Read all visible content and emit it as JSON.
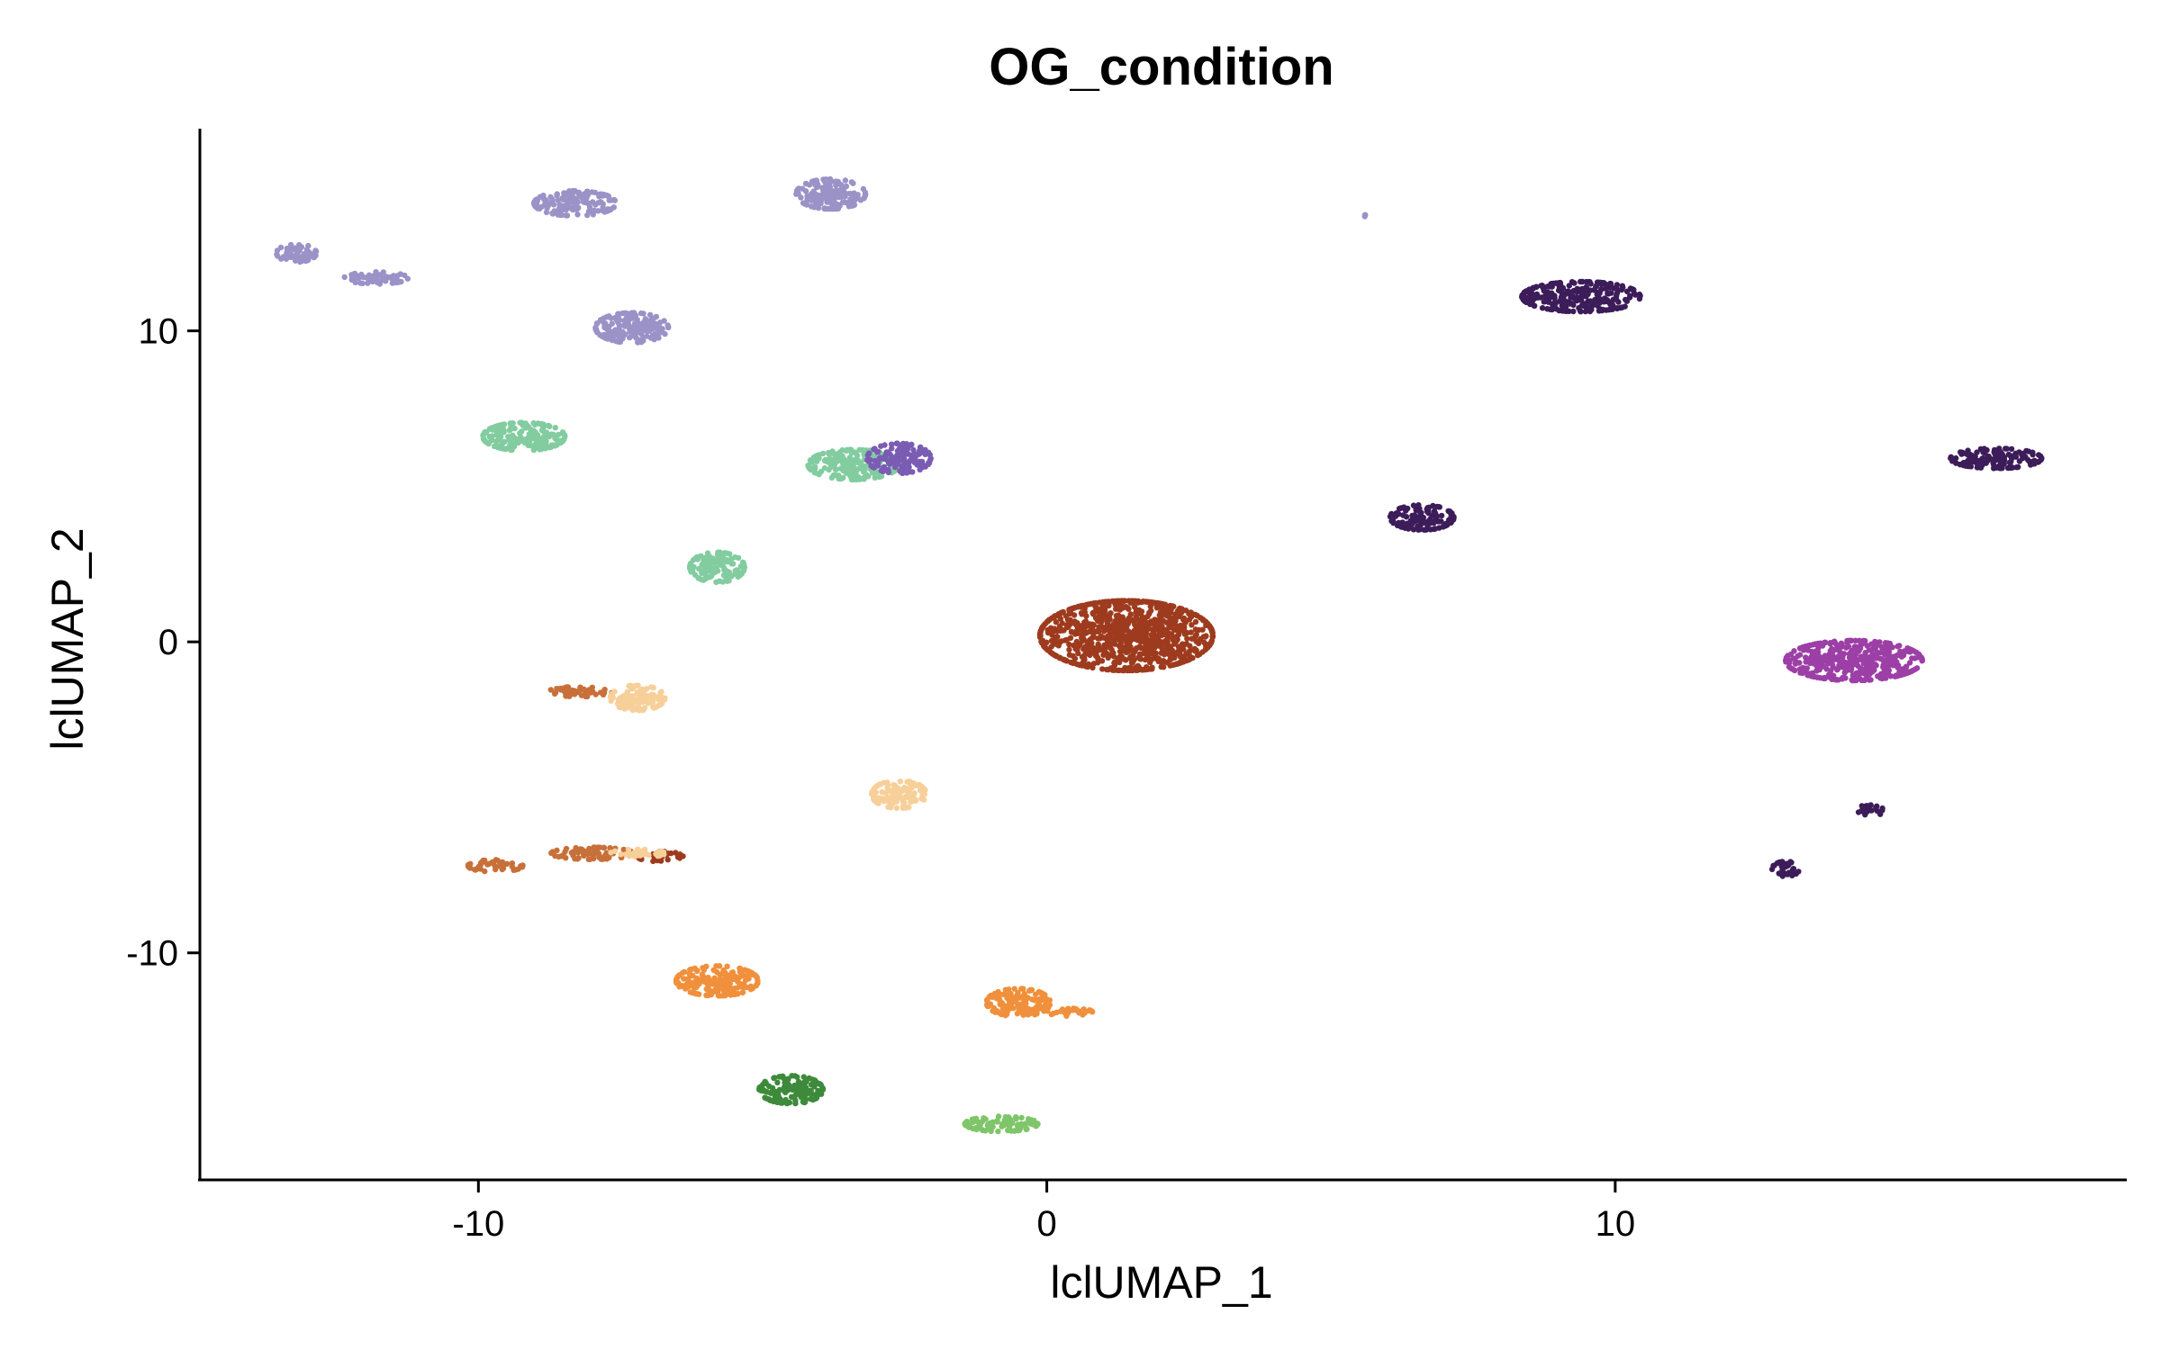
{
  "chart_data": {
    "type": "scatter",
    "title": "OG_condition",
    "xlabel": "lclUMAP_1",
    "ylabel": "lclUMAP_2",
    "xlim": [
      -14.9,
      19
    ],
    "ylim": [
      -17.3,
      16.5
    ],
    "x_ticks": [
      -10,
      0,
      10
    ],
    "y_ticks": [
      10,
      0,
      -10
    ],
    "x_tick_labels": [
      "-10",
      "0",
      "10"
    ],
    "y_tick_labels": [
      "10",
      "0",
      "-10"
    ],
    "grid": false,
    "legend": "none",
    "series": [
      {
        "color": "#9b92c7",
        "clusters": [
          {
            "x": -13.2,
            "y": 12.5,
            "sx": 0.22,
            "sy": 0.18
          },
          {
            "x": -11.8,
            "y": 11.7,
            "sx": 0.35,
            "sy": 0.12
          },
          {
            "x": -8.3,
            "y": 14.1,
            "sx": 0.45,
            "sy": 0.25
          },
          {
            "x": -7.3,
            "y": 10.1,
            "sx": 0.4,
            "sy": 0.3
          },
          {
            "x": -3.8,
            "y": 14.4,
            "sx": 0.38,
            "sy": 0.3
          },
          {
            "x": 5.6,
            "y": 13.7,
            "sx": 0.02,
            "sy": 0.02
          }
        ]
      },
      {
        "color": "#82cca0",
        "clusters": [
          {
            "x": -9.2,
            "y": 6.6,
            "sx": 0.45,
            "sy": 0.28
          },
          {
            "x": -3.4,
            "y": 5.7,
            "sx": 0.5,
            "sy": 0.3
          },
          {
            "x": -5.8,
            "y": 2.4,
            "sx": 0.3,
            "sy": 0.3
          }
        ]
      },
      {
        "color": "#7a5cb3",
        "clusters": [
          {
            "x": -2.6,
            "y": 5.9,
            "sx": 0.35,
            "sy": 0.3
          }
        ]
      },
      {
        "color": "#9e3b1e",
        "clusters": [
          {
            "x": 1.4,
            "y": 0.2,
            "sx": 0.95,
            "sy": 0.7
          },
          {
            "x": -6.8,
            "y": -6.9,
            "sx": 0.25,
            "sy": 0.1
          }
        ]
      },
      {
        "color": "#c8703a",
        "clusters": [
          {
            "x": -8.2,
            "y": -1.6,
            "sx": 0.35,
            "sy": 0.1
          },
          {
            "x": -9.7,
            "y": -7.2,
            "sx": 0.3,
            "sy": 0.12
          },
          {
            "x": -8.0,
            "y": -6.8,
            "sx": 0.45,
            "sy": 0.12
          }
        ]
      },
      {
        "color": "#f7cf99",
        "clusters": [
          {
            "x": -7.2,
            "y": -1.8,
            "sx": 0.3,
            "sy": 0.25
          },
          {
            "x": -2.6,
            "y": -4.9,
            "sx": 0.3,
            "sy": 0.28
          },
          {
            "x": -7.2,
            "y": -6.8,
            "sx": 0.3,
            "sy": 0.08
          }
        ]
      },
      {
        "color": "#f0903c",
        "clusters": [
          {
            "x": -5.8,
            "y": -10.9,
            "sx": 0.45,
            "sy": 0.3
          },
          {
            "x": -0.5,
            "y": -11.6,
            "sx": 0.35,
            "sy": 0.28
          },
          {
            "x": 0.4,
            "y": -11.9,
            "sx": 0.25,
            "sy": 0.08
          }
        ]
      },
      {
        "color": "#3d8a3b",
        "clusters": [
          {
            "x": -4.5,
            "y": -14.4,
            "sx": 0.35,
            "sy": 0.28
          }
        ]
      },
      {
        "color": "#7fc56a",
        "clusters": [
          {
            "x": -0.8,
            "y": -15.5,
            "sx": 0.4,
            "sy": 0.15
          }
        ]
      },
      {
        "color": "#3c1c59",
        "clusters": [
          {
            "x": 9.4,
            "y": 11.1,
            "sx": 0.65,
            "sy": 0.3
          },
          {
            "x": 6.6,
            "y": 4.0,
            "sx": 0.35,
            "sy": 0.25
          },
          {
            "x": 16.7,
            "y": 5.9,
            "sx": 0.5,
            "sy": 0.2
          },
          {
            "x": 14.5,
            "y": -5.4,
            "sx": 0.15,
            "sy": 0.12
          },
          {
            "x": 13.0,
            "y": -7.3,
            "sx": 0.15,
            "sy": 0.15
          }
        ]
      },
      {
        "color": "#9c3fa6",
        "clusters": [
          {
            "x": 14.2,
            "y": -0.6,
            "sx": 0.75,
            "sy": 0.4
          }
        ]
      }
    ]
  }
}
